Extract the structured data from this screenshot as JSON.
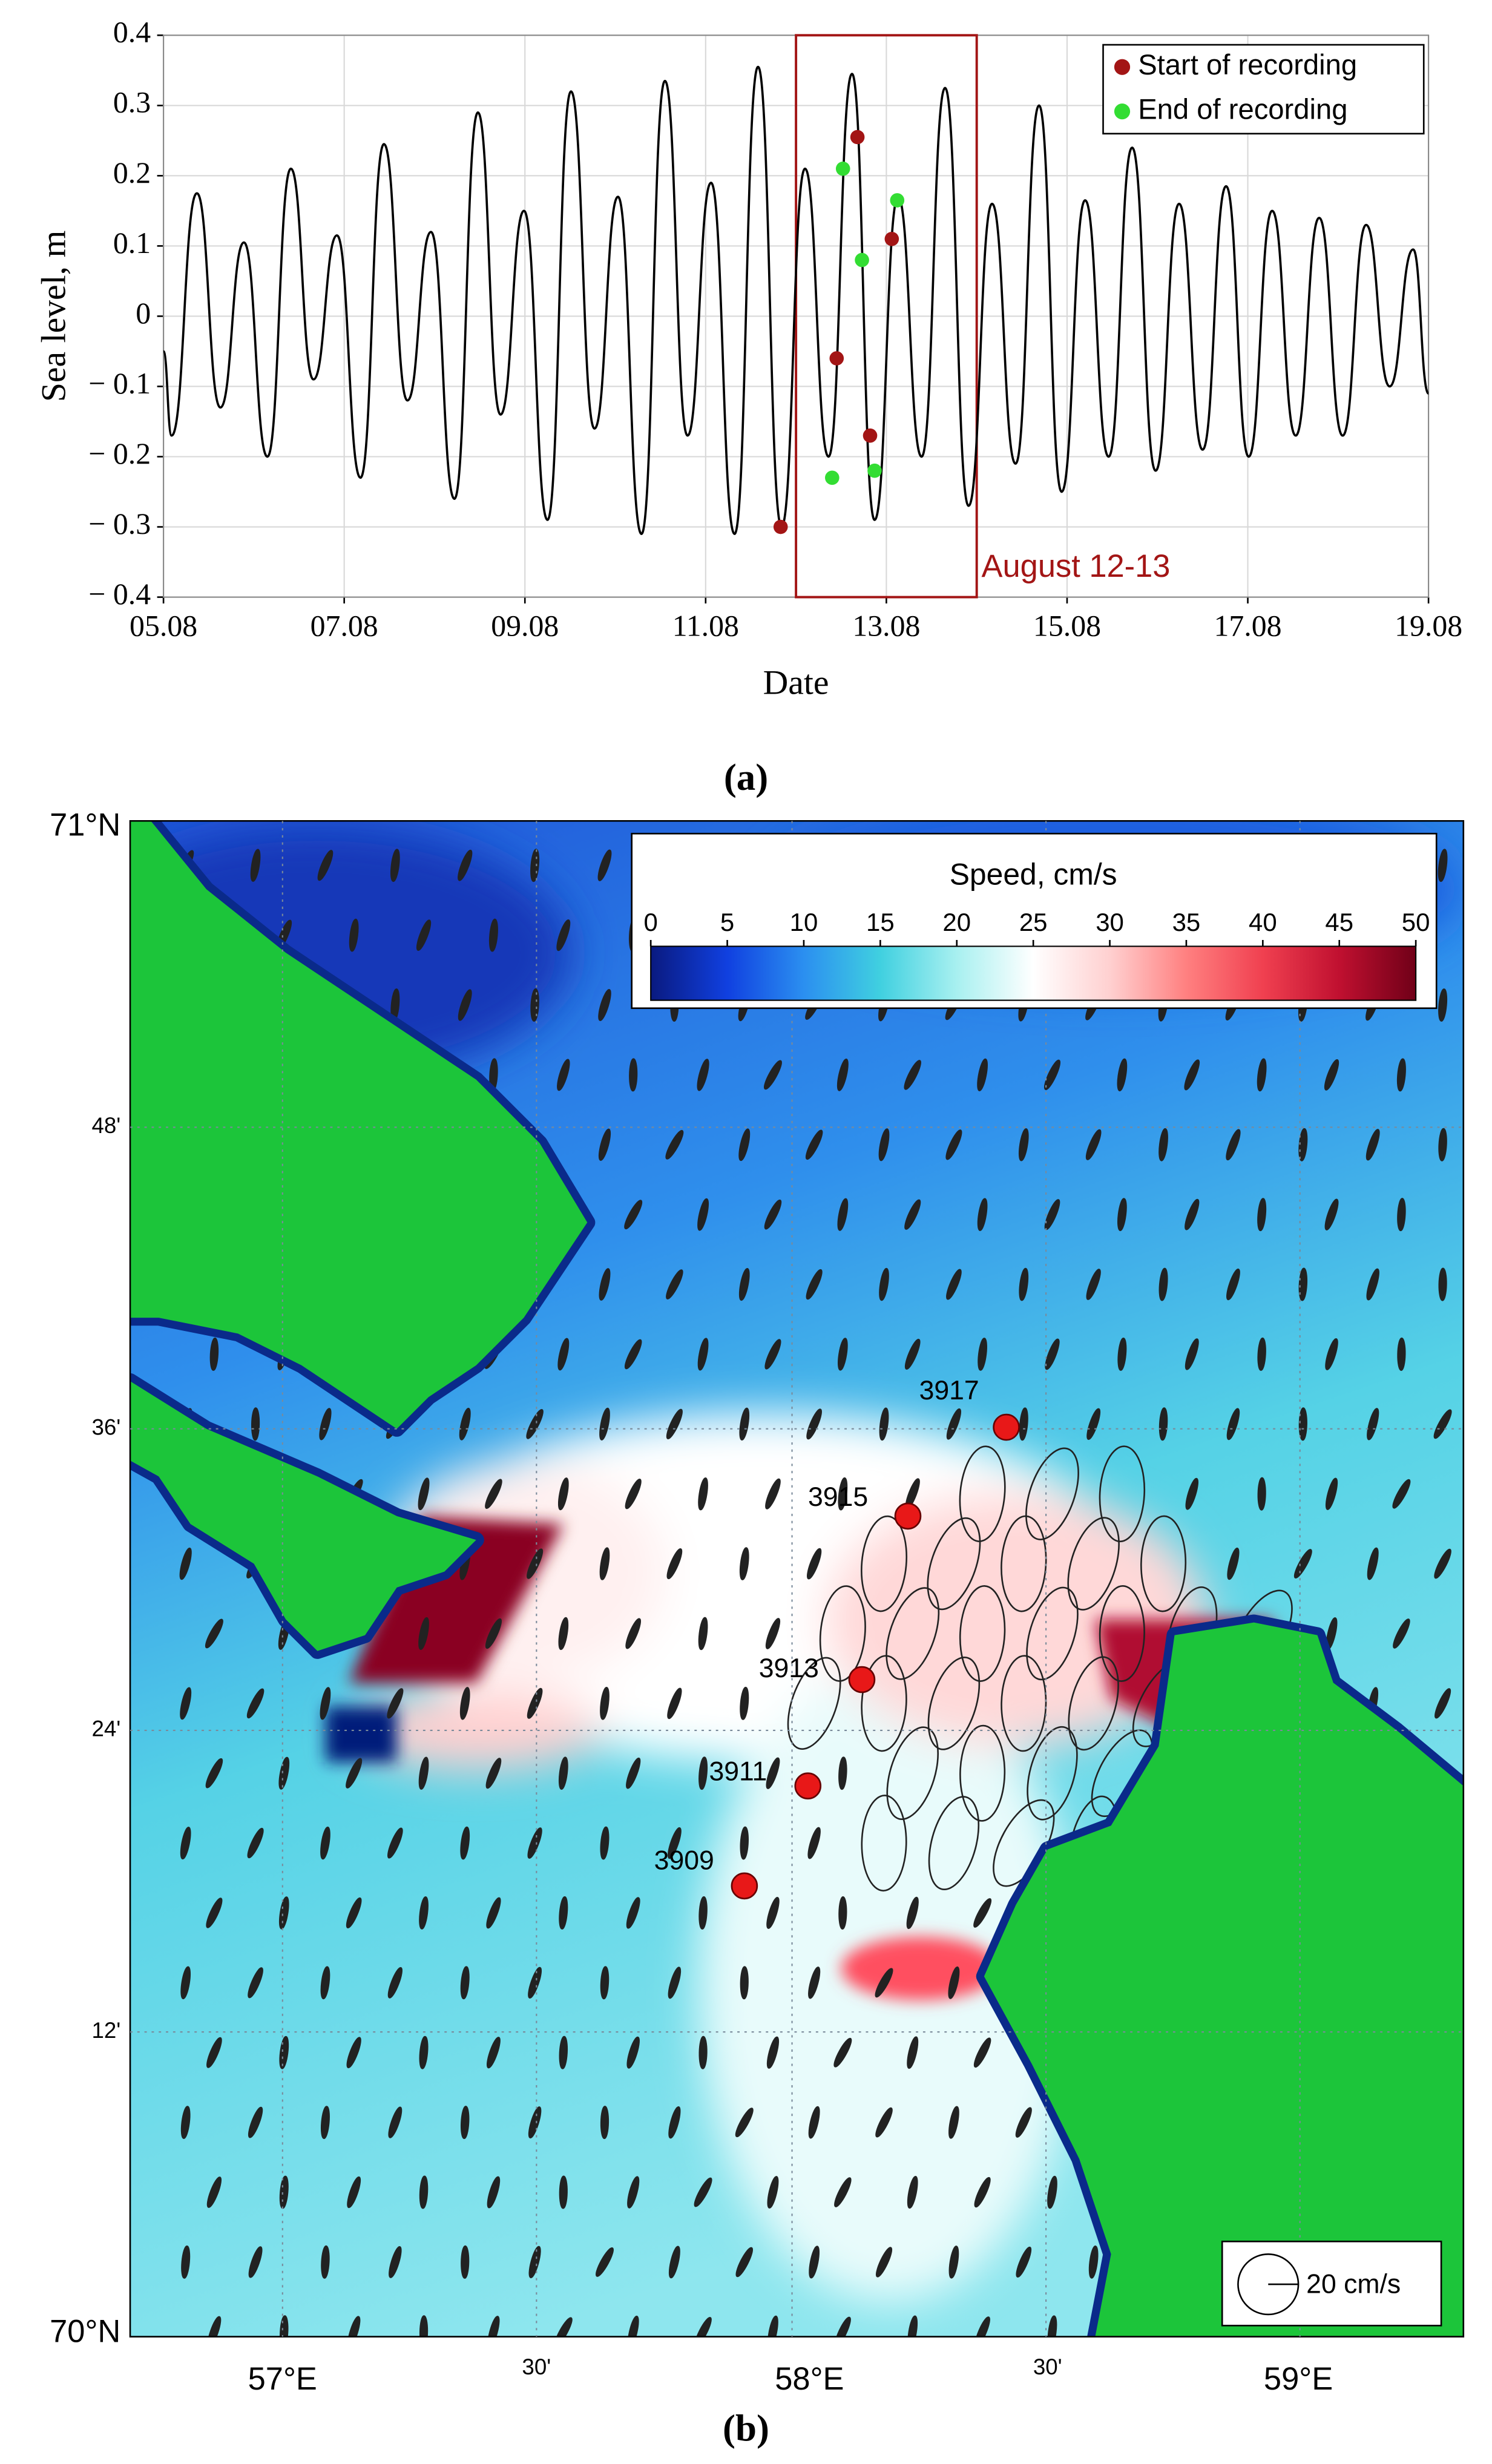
{
  "chart_data": [
    {
      "type": "line",
      "x_label": "Date",
      "y_label": "Sea level, m",
      "xlim": [
        5,
        19
      ],
      "xticks": [
        {
          "value": 5,
          "label": "05.08"
        },
        {
          "value": 7,
          "label": "07.08"
        },
        {
          "value": 9,
          "label": "09.08"
        },
        {
          "value": 11,
          "label": "11.08"
        },
        {
          "value": 13,
          "label": "13.08"
        },
        {
          "value": 15,
          "label": "15.08"
        },
        {
          "value": 17,
          "label": "17.08"
        },
        {
          "value": 19,
          "label": "19.08"
        }
      ],
      "ylim": [
        -0.4,
        0.4
      ],
      "yticks": [
        0.4,
        0.3,
        0.2,
        0.1,
        0,
        {
          "value": -0.1,
          "label": "− 0.1"
        },
        {
          "value": -0.2,
          "label": "− 0.2"
        },
        {
          "value": -0.3,
          "label": "− 0.3"
        },
        {
          "value": -0.4,
          "label": "− 0.4"
        }
      ],
      "grid": true,
      "legend": "upper right",
      "highlight": {
        "label": "August 12-13",
        "xlim": [
          12,
          14
        ],
        "color": "#a31515"
      },
      "series": [
        {
          "type": "line",
          "color": "#000000",
          "x": [
            5.0,
            5.09,
            5.37,
            5.63,
            5.89,
            6.15,
            6.41,
            6.66,
            6.92,
            7.18,
            7.44,
            7.7,
            7.96,
            8.22,
            8.48,
            8.73,
            8.99,
            9.25,
            9.51,
            9.77,
            10.03,
            10.29,
            10.55,
            10.8,
            11.06,
            11.32,
            11.58,
            11.84,
            12.1,
            12.36,
            12.62,
            12.87,
            13.13,
            13.39,
            13.65,
            13.91,
            14.17,
            14.43,
            14.69,
            14.94,
            15.2,
            15.46,
            15.72,
            15.98,
            16.24,
            16.5,
            16.76,
            17.01,
            17.27,
            17.53,
            17.79,
            18.05,
            18.31,
            18.57,
            18.83,
            19.0
          ],
          "values": [
            -0.05,
            -0.17,
            0.175,
            -0.13,
            0.105,
            -0.2,
            0.21,
            -0.09,
            0.115,
            -0.23,
            0.245,
            -0.12,
            0.12,
            -0.26,
            0.29,
            -0.14,
            0.15,
            -0.29,
            0.32,
            -0.16,
            0.17,
            -0.31,
            0.335,
            -0.17,
            0.19,
            -0.31,
            0.355,
            -0.3,
            0.21,
            -0.2,
            0.345,
            -0.29,
            0.17,
            -0.2,
            0.325,
            -0.27,
            0.16,
            -0.21,
            0.3,
            -0.25,
            0.165,
            -0.2,
            0.24,
            -0.22,
            0.16,
            -0.19,
            0.185,
            -0.2,
            0.15,
            -0.17,
            0.14,
            -0.17,
            0.13,
            -0.1,
            0.095,
            -0.11
          ]
        },
        {
          "type": "scatter",
          "name": "Start of recording",
          "color": "#a31515",
          "x": [
            11.83,
            12.45,
            12.68,
            12.82,
            13.06
          ],
          "values": [
            -0.3,
            -0.06,
            0.255,
            -0.17,
            0.11
          ]
        },
        {
          "type": "scatter",
          "name": "End of recording",
          "color": "#33dd33",
          "x": [
            12.4,
            12.52,
            12.73,
            12.87,
            13.12
          ],
          "values": [
            -0.23,
            0.21,
            0.08,
            -0.22,
            0.165
          ]
        }
      ]
    }
  ],
  "captions": [
    "(a)",
    "(b)"
  ],
  "map": {
    "lat_labels": [
      "71°N",
      "48'",
      "36'",
      "24'",
      "12'",
      "70°N"
    ],
    "lon_labels": [
      "57°E",
      "30'",
      "58°E",
      "30'",
      "59°E"
    ],
    "colorbar": {
      "title": "Speed, cm/s",
      "lim": [
        0,
        50
      ],
      "ticks": [
        0,
        5,
        10,
        15,
        20,
        25,
        30,
        35,
        40,
        45,
        50
      ]
    },
    "stations": [
      "3917",
      "3915",
      "3913",
      "3911",
      "3909"
    ],
    "scale_label": "20 cm/s"
  }
}
